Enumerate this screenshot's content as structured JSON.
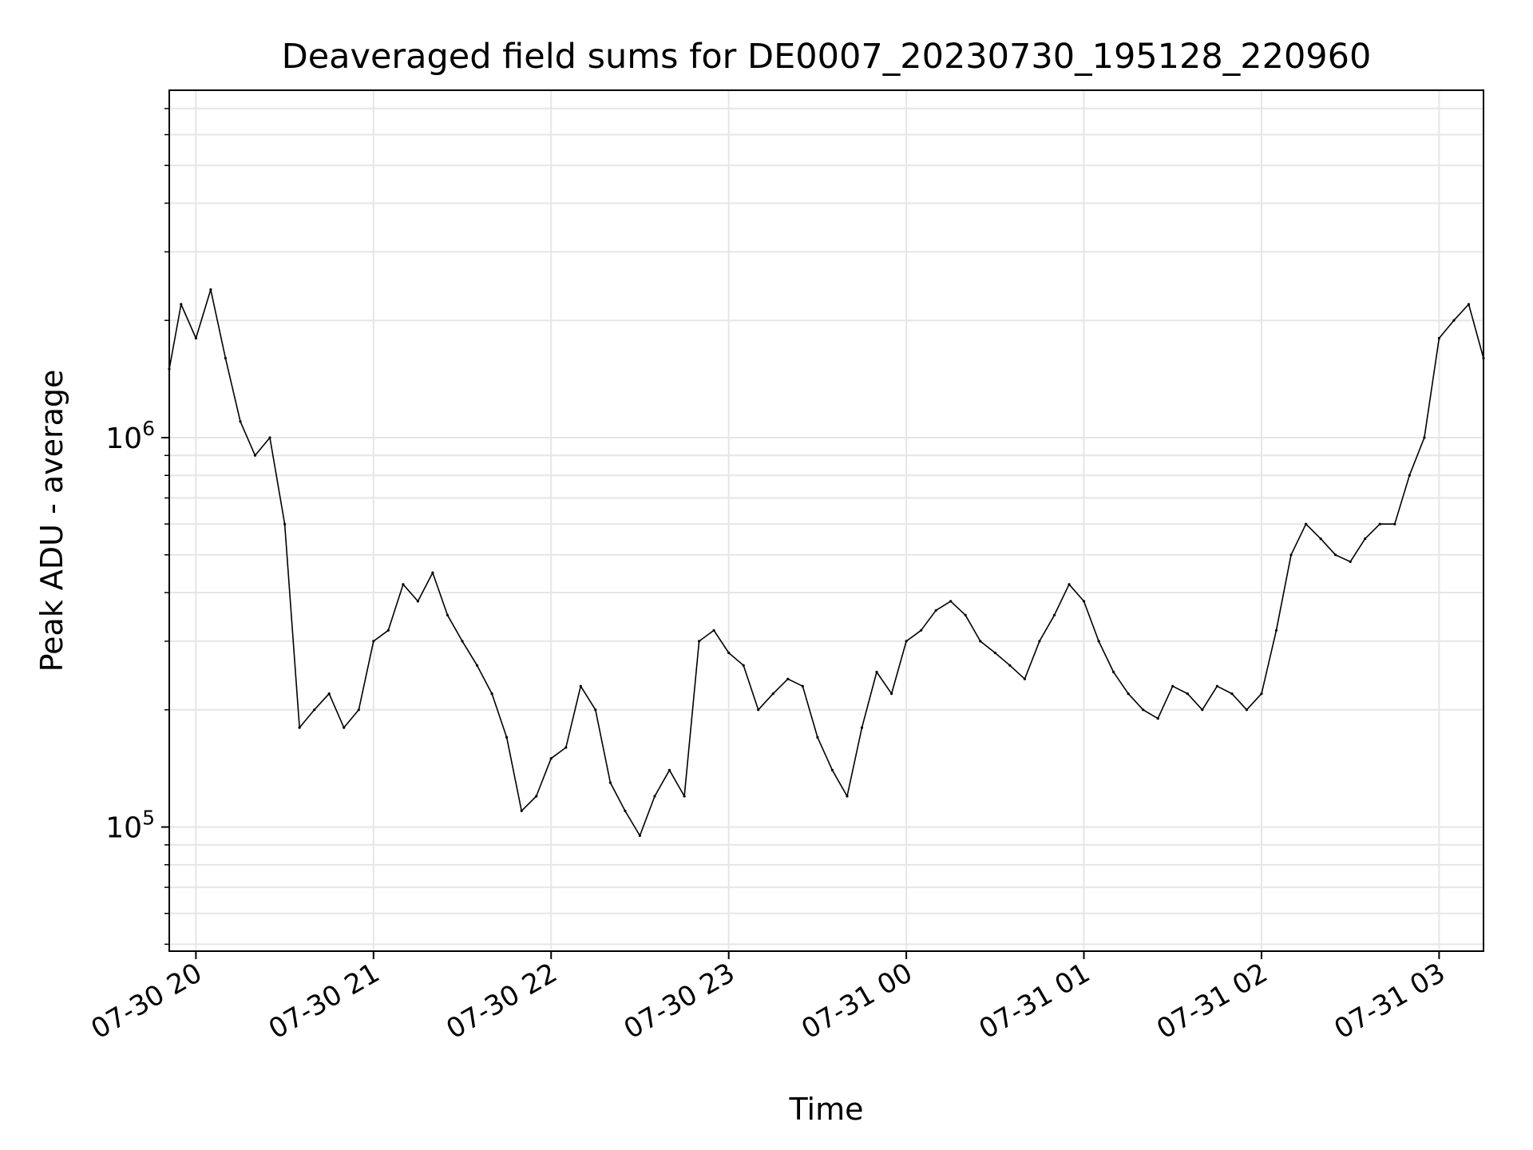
{
  "chart_data": {
    "type": "line",
    "title": "Deaveraged field sums for DE0007_20230730_195128_220960",
    "xlabel": "Time",
    "ylabel": "Peak ADU - average",
    "y_scale": "log",
    "grid": true,
    "grid_color": "#e6e6e6",
    "line_color": "#000000",
    "xlim": [
      "2023-07-30 19:51",
      "2023-07-31 03:15"
    ],
    "ylim": [
      48000,
      7800000
    ],
    "x_ticks": [
      {
        "time": "2023-07-30 20:00",
        "label": "07-30 20"
      },
      {
        "time": "2023-07-30 21:00",
        "label": "07-30 21"
      },
      {
        "time": "2023-07-30 22:00",
        "label": "07-30 22"
      },
      {
        "time": "2023-07-30 23:00",
        "label": "07-30 23"
      },
      {
        "time": "2023-07-31 00:00",
        "label": "07-31 00"
      },
      {
        "time": "2023-07-31 01:00",
        "label": "07-31 01"
      },
      {
        "time": "2023-07-31 02:00",
        "label": "07-31 02"
      },
      {
        "time": "2023-07-31 03:00",
        "label": "07-31 03"
      }
    ],
    "y_ticks": [
      {
        "value": 100000,
        "base": "10",
        "exp": "5"
      },
      {
        "value": 1000000,
        "base": "10",
        "exp": "6"
      }
    ],
    "series": [
      {
        "name": "",
        "x": [
          "2023-07-30 19:51",
          "2023-07-30 19:55",
          "2023-07-30 20:00",
          "2023-07-30 20:05",
          "2023-07-30 20:10",
          "2023-07-30 20:15",
          "2023-07-30 20:20",
          "2023-07-30 20:25",
          "2023-07-30 20:30",
          "2023-07-30 20:35",
          "2023-07-30 20:40",
          "2023-07-30 20:45",
          "2023-07-30 20:50",
          "2023-07-30 20:55",
          "2023-07-30 21:00",
          "2023-07-30 21:05",
          "2023-07-30 21:10",
          "2023-07-30 21:15",
          "2023-07-30 21:20",
          "2023-07-30 21:25",
          "2023-07-30 21:30",
          "2023-07-30 21:35",
          "2023-07-30 21:40",
          "2023-07-30 21:45",
          "2023-07-30 21:50",
          "2023-07-30 21:55",
          "2023-07-30 22:00",
          "2023-07-30 22:05",
          "2023-07-30 22:10",
          "2023-07-30 22:15",
          "2023-07-30 22:20",
          "2023-07-30 22:25",
          "2023-07-30 22:30",
          "2023-07-30 22:35",
          "2023-07-30 22:40",
          "2023-07-30 22:45",
          "2023-07-30 22:50",
          "2023-07-30 22:55",
          "2023-07-30 23:00",
          "2023-07-30 23:05",
          "2023-07-30 23:10",
          "2023-07-30 23:15",
          "2023-07-30 23:20",
          "2023-07-30 23:25",
          "2023-07-30 23:30",
          "2023-07-30 23:35",
          "2023-07-30 23:40",
          "2023-07-30 23:45",
          "2023-07-30 23:50",
          "2023-07-30 23:55",
          "2023-07-31 00:00",
          "2023-07-31 00:05",
          "2023-07-31 00:10",
          "2023-07-31 00:15",
          "2023-07-31 00:20",
          "2023-07-31 00:25",
          "2023-07-31 00:30",
          "2023-07-31 00:35",
          "2023-07-31 00:40",
          "2023-07-31 00:45",
          "2023-07-31 00:50",
          "2023-07-31 00:55",
          "2023-07-31 01:00",
          "2023-07-31 01:05",
          "2023-07-31 01:10",
          "2023-07-31 01:15",
          "2023-07-31 01:20",
          "2023-07-31 01:25",
          "2023-07-31 01:30",
          "2023-07-31 01:35",
          "2023-07-31 01:40",
          "2023-07-31 01:45",
          "2023-07-31 01:50",
          "2023-07-31 01:55",
          "2023-07-31 02:00",
          "2023-07-31 02:05",
          "2023-07-31 02:10",
          "2023-07-31 02:15",
          "2023-07-31 02:20",
          "2023-07-31 02:25",
          "2023-07-31 02:30",
          "2023-07-31 02:35",
          "2023-07-31 02:40",
          "2023-07-31 02:45",
          "2023-07-31 02:50",
          "2023-07-31 02:55",
          "2023-07-31 03:00",
          "2023-07-31 03:05",
          "2023-07-31 03:10",
          "2023-07-31 03:15"
        ],
        "y": [
          1500000,
          2200000,
          1800000,
          2400000,
          1600000,
          1100000,
          900000,
          1000000,
          600000,
          180000,
          200000,
          220000,
          180000,
          200000,
          300000,
          320000,
          420000,
          380000,
          450000,
          350000,
          300000,
          260000,
          220000,
          170000,
          110000,
          120000,
          150000,
          160000,
          230000,
          200000,
          130000,
          110000,
          95000,
          120000,
          140000,
          120000,
          300000,
          320000,
          280000,
          260000,
          200000,
          220000,
          240000,
          230000,
          170000,
          140000,
          120000,
          180000,
          250000,
          220000,
          300000,
          320000,
          360000,
          380000,
          350000,
          300000,
          280000,
          260000,
          240000,
          300000,
          350000,
          420000,
          380000,
          300000,
          250000,
          220000,
          200000,
          190000,
          230000,
          220000,
          200000,
          230000,
          220000,
          200000,
          220000,
          320000,
          500000,
          600000,
          550000,
          500000,
          480000,
          550000,
          600000,
          600000,
          800000,
          1000000,
          1800000,
          2000000,
          2200000,
          1600000
        ]
      }
    ]
  }
}
